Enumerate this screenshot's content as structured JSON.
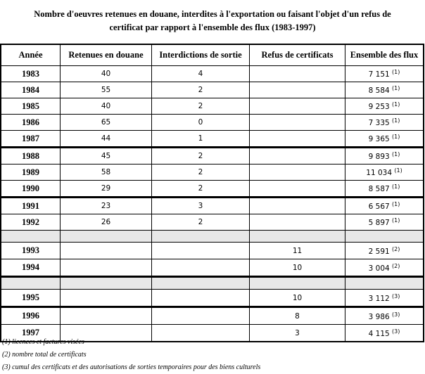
{
  "title_line1": "Nombre d'oeuvres retenues en douane, interdites à l'exportation ou faisant l'objet d'un refus de",
  "title_line2": "certificat par rapport à l'ensemble des flux (1983-1997)",
  "headers": [
    "Année",
    "Retenues en douane",
    "Interdictions de sortie",
    "Refus de certificats",
    "Ensemble des flux"
  ],
  "rows": [
    {
      "year": "1983",
      "retenues": "40",
      "interdictions": "4",
      "refus": "",
      "flux": "7 151",
      "note": "(1)"
    },
    {
      "year": "1984",
      "retenues": "55",
      "interdictions": "2",
      "refus": "",
      "flux": "8 584",
      "note": "(1)"
    },
    {
      "year": "1985",
      "retenues": "40",
      "interdictions": "2",
      "refus": "",
      "flux": "9 253",
      "note": "(1)"
    },
    {
      "year": "1986",
      "retenues": "65",
      "interdictions": "0",
      "refus": "",
      "flux": "7 335",
      "note": "(1)"
    },
    {
      "year": "1987",
      "retenues": "44",
      "interdictions": "1",
      "refus": "",
      "flux": "9 365",
      "note": "(1)"
    },
    {
      "year": "1988",
      "retenues": "45",
      "interdictions": "2",
      "refus": "",
      "flux": "9 893",
      "note": "(1)"
    },
    {
      "year": "1989",
      "retenues": "58",
      "interdictions": "2",
      "refus": "",
      "flux": "11 034",
      "note": "(1)"
    },
    {
      "year": "1990",
      "retenues": "29",
      "interdictions": "2",
      "refus": "",
      "flux": "8 587",
      "note": "(1)"
    },
    {
      "year": "1991",
      "retenues": "23",
      "interdictions": "3",
      "refus": "",
      "flux": "6 567",
      "note": "(1)"
    },
    {
      "year": "1992",
      "retenues": "26",
      "interdictions": "2",
      "refus": "",
      "flux": "5 897",
      "note": "(1)"
    },
    {
      "year": "1993",
      "retenues": "",
      "interdictions": "",
      "refus": "11",
      "flux": "2 591",
      "note": "(2)"
    },
    {
      "year": "1994",
      "retenues": "",
      "interdictions": "",
      "refus": "10",
      "flux": "3 004",
      "note": "(2)"
    },
    {
      "year": "1995",
      "retenues": "",
      "interdictions": "",
      "refus": "10",
      "flux": "3 112",
      "note": "(3)"
    },
    {
      "year": "1996",
      "retenues": "",
      "interdictions": "",
      "refus": "8",
      "flux": "3 986",
      "note": "(3)"
    },
    {
      "year": "1997",
      "retenues": "",
      "interdictions": "",
      "refus": "3",
      "flux": "4 115",
      "note": "(3)"
    }
  ],
  "footnotes": [
    "(1) licences et factures visées",
    "(2) nombre total de certificats",
    "(3) cumul des certificats et des autorisations de sorties temporaires pour des biens culturels"
  ]
}
